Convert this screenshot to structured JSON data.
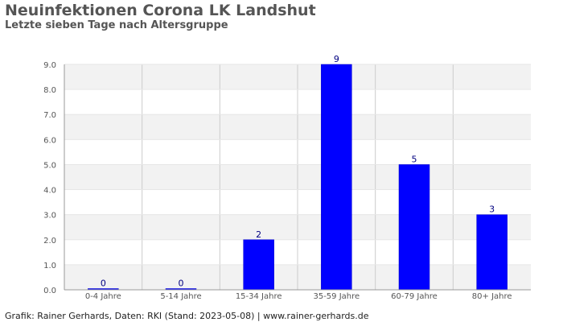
{
  "header": {
    "title": "Neuinfektionen Corona LK Landshut",
    "subtitle": "Letzte sieben Tage nach Altersgruppe"
  },
  "footer": {
    "text": "Grafik: Rainer Gerhards, Daten: RKI (Stand: 2023-05-08) | www.rainer-gerhards.de"
  },
  "colors": {
    "bar": "#0000ff",
    "data_label": "#000080",
    "band": "#f2f2f2",
    "grid": "#cccccc"
  },
  "chart_data": {
    "type": "bar",
    "title": "Neuinfektionen Corona LK Landshut",
    "subtitle": "Letzte sieben Tage nach Altersgruppe",
    "categories": [
      "0-4 Jahre",
      "5-14 Jahre",
      "15-34 Jahre",
      "35-59 Jahre",
      "60-79 Jahre",
      "80+ Jahre"
    ],
    "values": [
      0,
      0,
      2,
      9,
      5,
      3
    ],
    "data_labels": [
      "0",
      "0",
      "2",
      "9",
      "5",
      "3"
    ],
    "ylim": [
      0,
      9
    ],
    "yticks": [
      "0.0",
      "1.0",
      "2.0",
      "3.0",
      "4.0",
      "5.0",
      "6.0",
      "7.0",
      "8.0",
      "9.0"
    ],
    "grid": true,
    "legend": false
  }
}
